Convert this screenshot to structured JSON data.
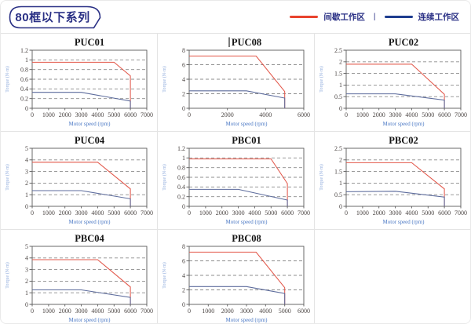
{
  "header": {
    "title": "80框以下系列",
    "legend": [
      {
        "key": "intermittent",
        "label": "间歇工作区",
        "color": "#e8432d"
      },
      {
        "key": "continuous",
        "label": "连续工作区",
        "color": "#1e3d8f"
      }
    ],
    "legend_separator": "|"
  },
  "colors": {
    "accent_navy": "#2a3085",
    "curve_red": "#e2574a",
    "curve_blue": "#5c6b9c",
    "grid_dash": "#8c8c8c",
    "plot_frame": "#5a5a5a",
    "cell_border": "#e4e4e4"
  },
  "chart_data": [
    {
      "type": "line",
      "title": "PUC01",
      "cursor_before_title": false,
      "xlabel": "Motor speed (rpm)",
      "ylabel": "Torque (N·m)",
      "xlim": [
        0,
        7000
      ],
      "xticks": [
        0,
        1000,
        2000,
        3000,
        4000,
        5000,
        6000,
        7000
      ],
      "ylim": [
        0,
        1.2
      ],
      "yticks": [
        0,
        0.2,
        0.4,
        0.6,
        0.8,
        1,
        1.2
      ],
      "grid": "dashed-horizontal",
      "legend_position": "none",
      "series": [
        {
          "name": "间歇工作区",
          "color": "#e2574a",
          "points": [
            [
              0,
              0.95
            ],
            [
              5000,
              0.95
            ],
            [
              6000,
              0.67
            ],
            [
              6000,
              0
            ]
          ]
        },
        {
          "name": "连续工作区",
          "color": "#5c6b9c",
          "points": [
            [
              0,
              0.33
            ],
            [
              3000,
              0.33
            ],
            [
              6000,
              0.15
            ],
            [
              6000,
              0
            ]
          ]
        }
      ]
    },
    {
      "type": "line",
      "title": "PUC08",
      "cursor_before_title": true,
      "xlabel": "Motor speed (rpm)",
      "ylabel": "Torque (N·m)",
      "xlim": [
        0,
        6000
      ],
      "xticks": [
        0,
        2000,
        4000,
        6000
      ],
      "ylim": [
        0,
        8
      ],
      "yticks": [
        0,
        2,
        4,
        6,
        8
      ],
      "grid": "dashed-horizontal",
      "legend_position": "none",
      "series": [
        {
          "name": "间歇工作区",
          "color": "#e2574a",
          "points": [
            [
              0,
              7.2
            ],
            [
              3500,
              7.2
            ],
            [
              5000,
              2.3
            ],
            [
              5000,
              0
            ]
          ]
        },
        {
          "name": "连续工作区",
          "color": "#5c6b9c",
          "points": [
            [
              0,
              2.4
            ],
            [
              3000,
              2.4
            ],
            [
              5000,
              1.4
            ],
            [
              5000,
              0
            ]
          ]
        }
      ]
    },
    {
      "type": "line",
      "title": "PUC02",
      "cursor_before_title": false,
      "xlabel": "Motor speed (rpm)",
      "ylabel": "Torque (N·m)",
      "xlim": [
        0,
        7000
      ],
      "xticks": [
        0,
        1000,
        2000,
        3000,
        4000,
        5000,
        6000,
        7000
      ],
      "ylim": [
        0,
        2.5
      ],
      "yticks": [
        0,
        0.5,
        1,
        1.5,
        2,
        2.5
      ],
      "grid": "dashed-horizontal",
      "legend_position": "none",
      "series": [
        {
          "name": "间歇工作区",
          "color": "#e2574a",
          "points": [
            [
              0,
              1.9
            ],
            [
              4000,
              1.9
            ],
            [
              6000,
              0.6
            ],
            [
              6000,
              0
            ]
          ]
        },
        {
          "name": "连续工作区",
          "color": "#5c6b9c",
          "points": [
            [
              0,
              0.62
            ],
            [
              3000,
              0.62
            ],
            [
              6000,
              0.35
            ],
            [
              6000,
              0
            ]
          ]
        }
      ]
    },
    {
      "type": "line",
      "title": "PUC04",
      "cursor_before_title": false,
      "xlabel": "Motor speed (rpm)",
      "ylabel": "Torque (N·m)",
      "xlim": [
        0,
        7000
      ],
      "xticks": [
        0,
        1000,
        2000,
        3000,
        4000,
        5000,
        6000,
        7000
      ],
      "ylim": [
        0,
        5
      ],
      "yticks": [
        0,
        1,
        2,
        3,
        4,
        5
      ],
      "grid": "dashed-horizontal",
      "legend_position": "none",
      "series": [
        {
          "name": "间歇工作区",
          "color": "#e2574a",
          "points": [
            [
              0,
              3.8
            ],
            [
              4000,
              3.8
            ],
            [
              6000,
              1.5
            ],
            [
              6000,
              0
            ]
          ]
        },
        {
          "name": "连续工作区",
          "color": "#5c6b9c",
          "points": [
            [
              0,
              1.35
            ],
            [
              3000,
              1.35
            ],
            [
              6000,
              0.65
            ],
            [
              6000,
              0
            ]
          ]
        }
      ]
    },
    {
      "type": "line",
      "title": "PBC01",
      "cursor_before_title": false,
      "xlabel": "Motor speed (rpm)",
      "ylabel": "Torque (N·m)",
      "xlim": [
        0,
        7000
      ],
      "xticks": [
        0,
        1000,
        2000,
        3000,
        4000,
        5000,
        6000,
        7000
      ],
      "ylim": [
        0,
        1.2
      ],
      "yticks": [
        0,
        0.2,
        0.4,
        0.6,
        0.8,
        1,
        1.2
      ],
      "grid": "dashed-horizontal",
      "legend_position": "none",
      "series": [
        {
          "name": "间歇工作区",
          "color": "#e2574a",
          "points": [
            [
              0,
              0.98
            ],
            [
              5000,
              0.98
            ],
            [
              6000,
              0.47
            ],
            [
              6000,
              0
            ]
          ]
        },
        {
          "name": "连续工作区",
          "color": "#5c6b9c",
          "points": [
            [
              0,
              0.35
            ],
            [
              3000,
              0.35
            ],
            [
              6000,
              0.13
            ],
            [
              6000,
              0
            ]
          ]
        }
      ]
    },
    {
      "type": "line",
      "title": "PBC02",
      "cursor_before_title": false,
      "xlabel": "Motor speed (rpm)",
      "ylabel": "Torque (N·m)",
      "xlim": [
        0,
        7000
      ],
      "xticks": [
        0,
        1000,
        2000,
        3000,
        4000,
        5000,
        6000,
        7000
      ],
      "ylim": [
        0,
        2.5
      ],
      "yticks": [
        0,
        0.5,
        1,
        1.5,
        2,
        2.5
      ],
      "grid": "dashed-horizontal",
      "legend_position": "none",
      "series": [
        {
          "name": "间歇工作区",
          "color": "#e2574a",
          "points": [
            [
              0,
              1.88
            ],
            [
              4000,
              1.88
            ],
            [
              6000,
              0.75
            ],
            [
              6000,
              0
            ]
          ]
        },
        {
          "name": "连续工作区",
          "color": "#5c6b9c",
          "points": [
            [
              0,
              0.63
            ],
            [
              3000,
              0.65
            ],
            [
              6000,
              0.4
            ],
            [
              6000,
              0
            ]
          ]
        }
      ]
    },
    {
      "type": "line",
      "title": "PBC04",
      "cursor_before_title": false,
      "xlabel": "Motor speed (rpm)",
      "ylabel": "Torque (N·m)",
      "xlim": [
        0,
        7000
      ],
      "xticks": [
        0,
        1000,
        2000,
        3000,
        4000,
        5000,
        6000,
        7000
      ],
      "ylim": [
        0,
        5
      ],
      "yticks": [
        0,
        1,
        2,
        3,
        4,
        5
      ],
      "grid": "dashed-horizontal",
      "legend_position": "none",
      "series": [
        {
          "name": "间歇工作区",
          "color": "#e2574a",
          "points": [
            [
              0,
              3.85
            ],
            [
              4000,
              3.85
            ],
            [
              6000,
              1.5
            ],
            [
              6000,
              0
            ]
          ]
        },
        {
          "name": "连续工作区",
          "color": "#5c6b9c",
          "points": [
            [
              0,
              1.25
            ],
            [
              3000,
              1.25
            ],
            [
              6000,
              0.6
            ],
            [
              6000,
              0
            ]
          ]
        }
      ]
    },
    {
      "type": "line",
      "title": "PBC08",
      "cursor_before_title": false,
      "xlabel": "Motor speed (rpm)",
      "ylabel": "Torque (N·m)",
      "xlim": [
        0,
        6000
      ],
      "xticks": [
        0,
        1000,
        2000,
        3000,
        4000,
        5000,
        6000
      ],
      "ylim": [
        0,
        8
      ],
      "yticks": [
        0,
        2,
        4,
        6,
        8
      ],
      "grid": "dashed-horizontal",
      "legend_position": "none",
      "series": [
        {
          "name": "间歇工作区",
          "color": "#e2574a",
          "points": [
            [
              0,
              7.2
            ],
            [
              3500,
              7.2
            ],
            [
              5000,
              2.3
            ],
            [
              5000,
              0
            ]
          ]
        },
        {
          "name": "连续工作区",
          "color": "#5c6b9c",
          "points": [
            [
              0,
              2.45
            ],
            [
              3000,
              2.45
            ],
            [
              5000,
              1.5
            ],
            [
              5000,
              0
            ]
          ]
        }
      ]
    }
  ]
}
